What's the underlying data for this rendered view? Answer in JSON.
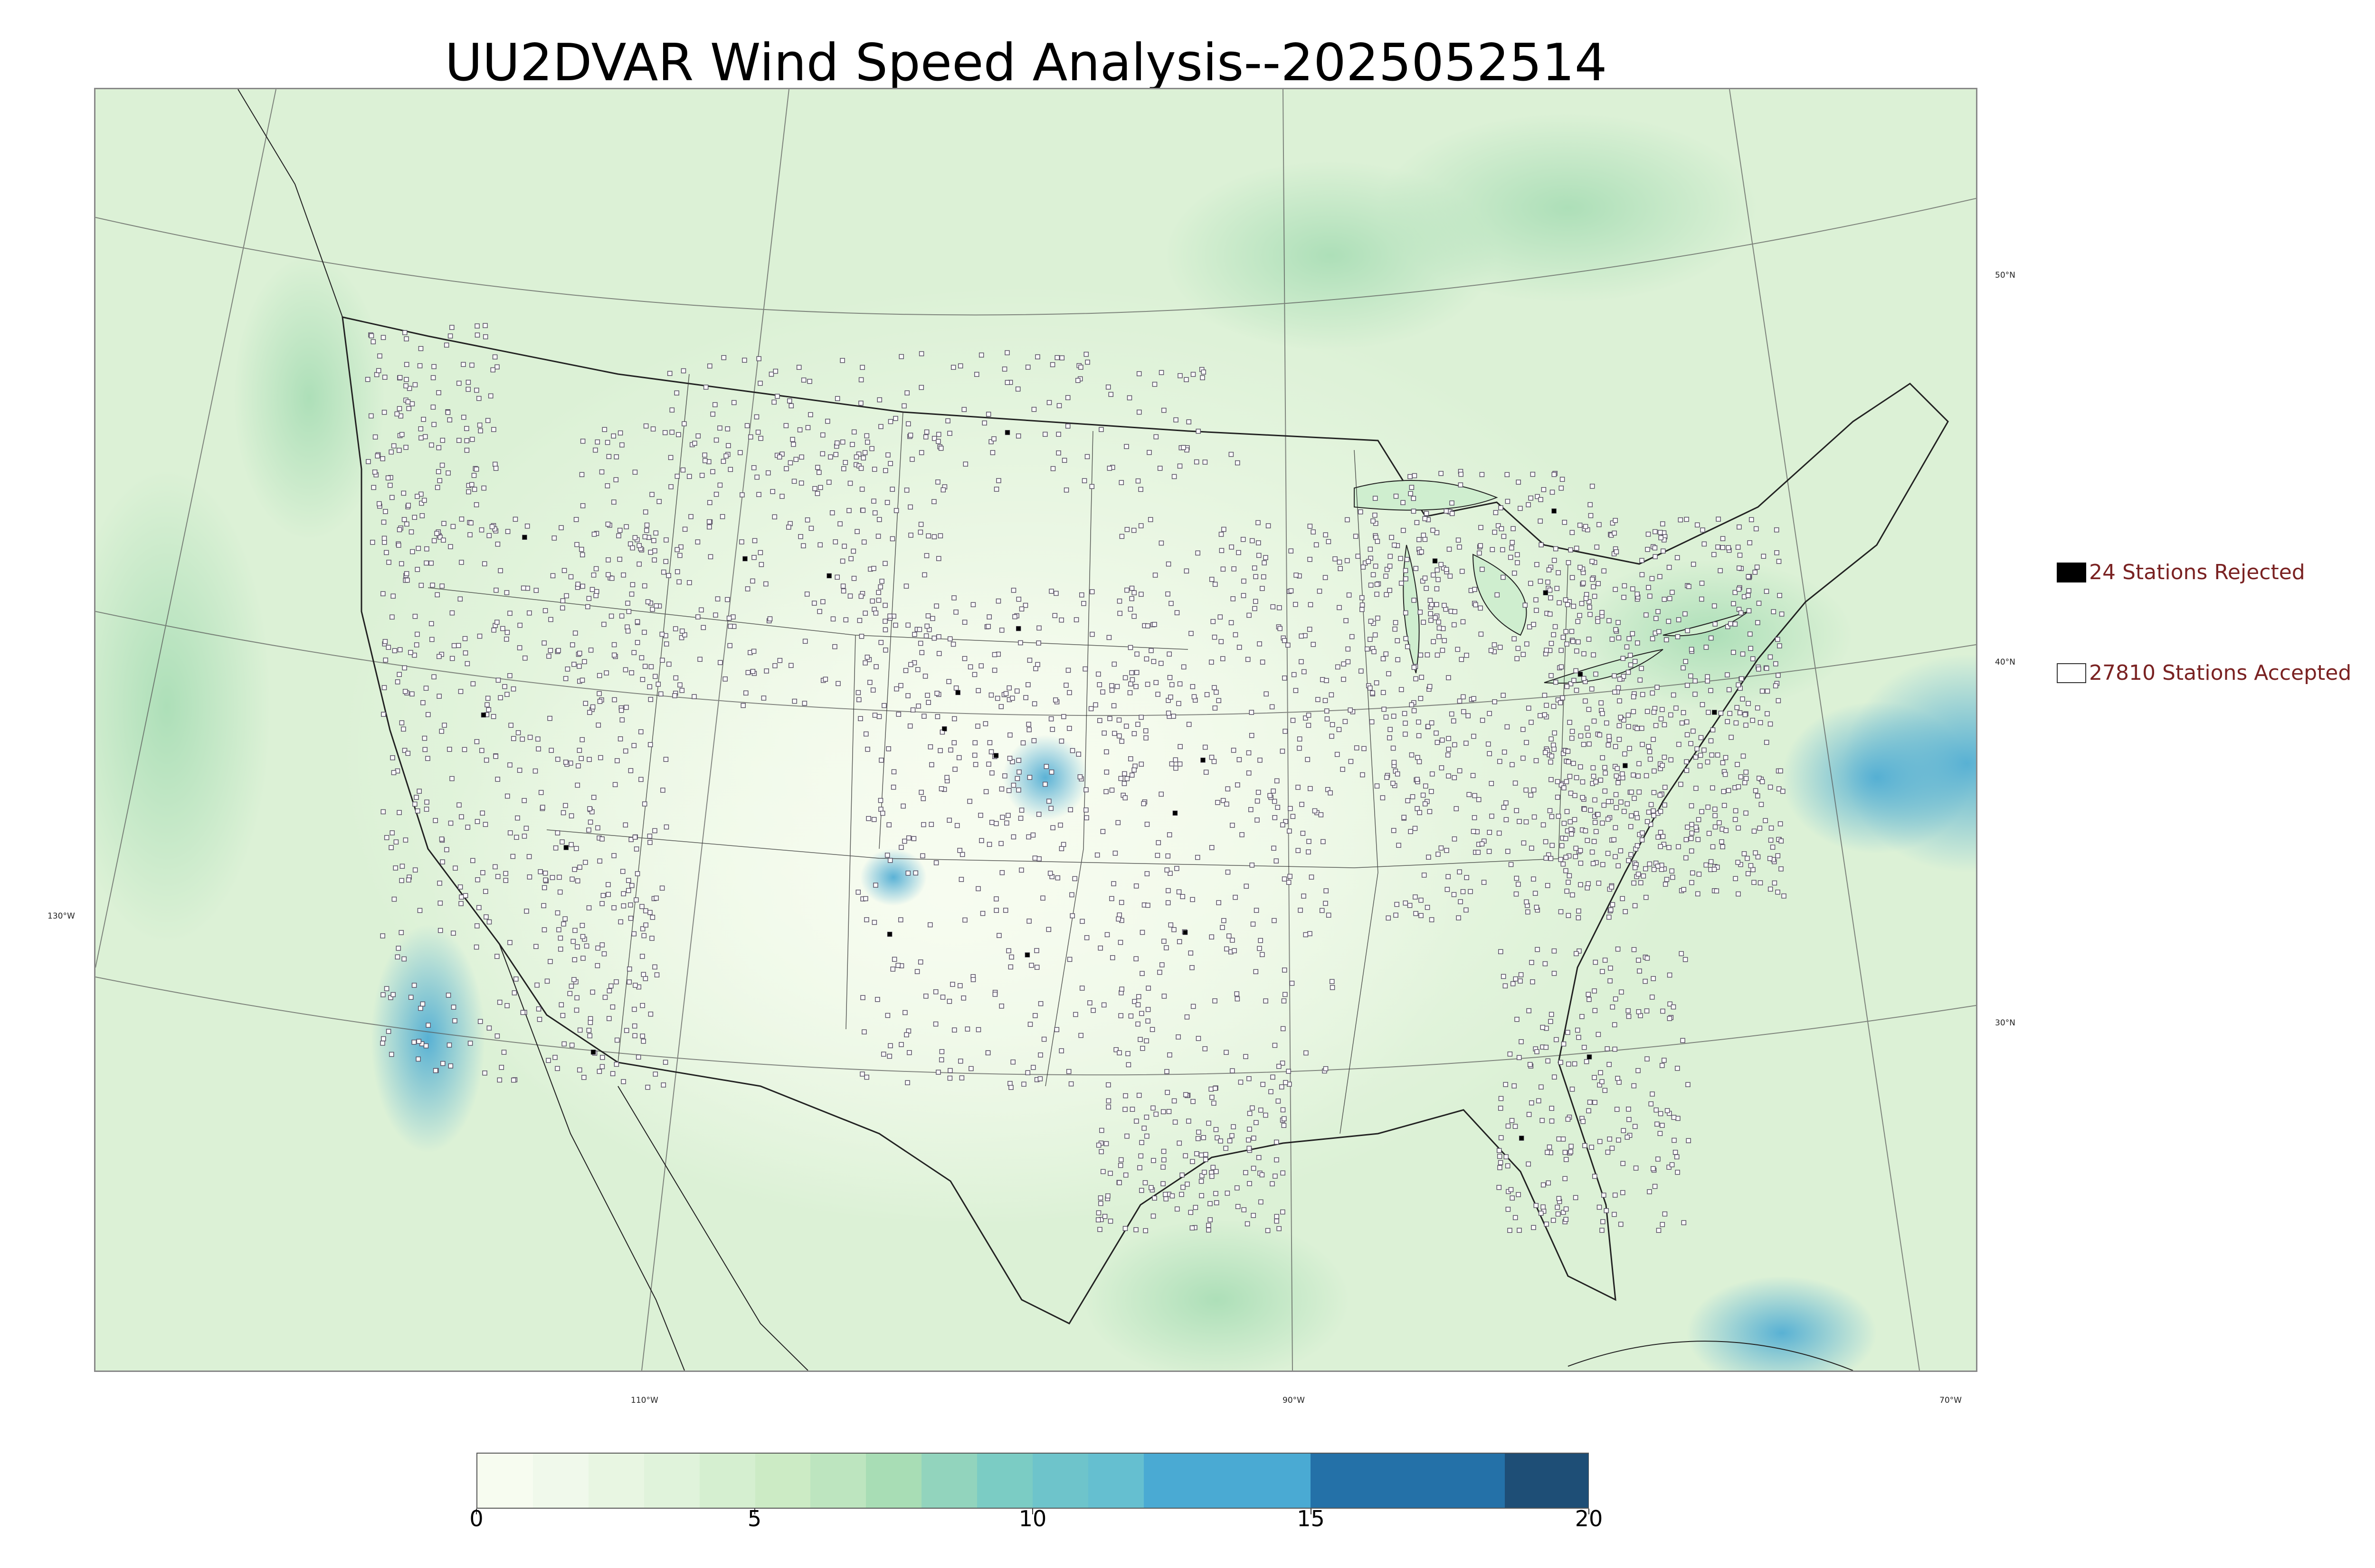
{
  "title": "UU2DVAR Wind Speed Analysis--2025052514",
  "map": {
    "projection_note_icon": "lambert-conformal-map",
    "lon_labels": [
      "130°W",
      "110°W",
      "90°W",
      "70°W"
    ],
    "lat_labels": [
      "50°N",
      "40°N",
      "30°N"
    ]
  },
  "legend": {
    "rejected": {
      "label": "24 Stations Rejected",
      "count": 24,
      "color": "#000000"
    },
    "accepted": {
      "label": "27810 Stations Accepted",
      "count": 27810,
      "color": "#ffffff"
    }
  },
  "colorbar": {
    "ticks": [
      "0",
      "5",
      "10",
      "15",
      "20"
    ],
    "min": 0,
    "max": 20,
    "colormap": "GnBu",
    "bins": [
      {
        "from": 0,
        "to": 1,
        "color": "#f7fcf0"
      },
      {
        "from": 1,
        "to": 2,
        "color": "#f0f9eb"
      },
      {
        "from": 2,
        "to": 3,
        "color": "#e8f6e2"
      },
      {
        "from": 3,
        "to": 4,
        "color": "#e0f3db"
      },
      {
        "from": 4,
        "to": 5,
        "color": "#d5efd0"
      },
      {
        "from": 5,
        "to": 6,
        "color": "#ccebc5"
      },
      {
        "from": 6,
        "to": 7,
        "color": "#bde5bf"
      },
      {
        "from": 7,
        "to": 8,
        "color": "#a8ddb5"
      },
      {
        "from": 8,
        "to": 9,
        "color": "#92d4bd"
      },
      {
        "from": 9,
        "to": 10,
        "color": "#7bccc4"
      },
      {
        "from": 10,
        "to": 11,
        "color": "#6ec4cb"
      },
      {
        "from": 11,
        "to": 12,
        "color": "#65bfd0"
      },
      {
        "from": 12,
        "to": 15,
        "color": "#4aaad3"
      },
      {
        "from": 15,
        "to": 18.5,
        "color": "#2471a8"
      },
      {
        "from": 18.5,
        "to": 20,
        "color": "#1e4e76"
      }
    ]
  }
}
